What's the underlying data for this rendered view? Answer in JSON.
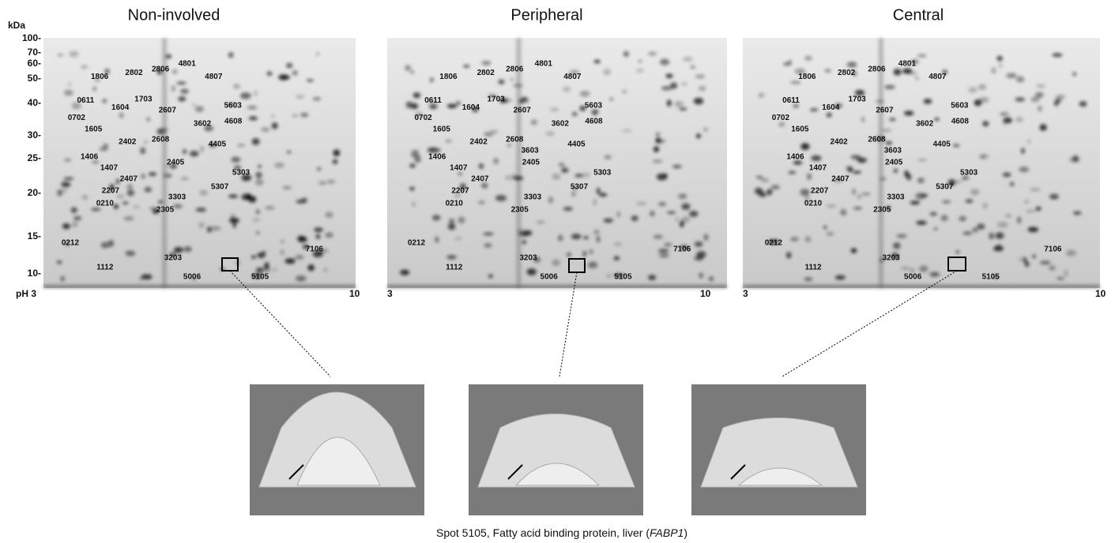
{
  "panels": [
    {
      "title": "Non-involved",
      "x_start": "pH 3",
      "x_end": "10",
      "spots": [
        "1806",
        "2802",
        "2806",
        "4801",
        "4807",
        "0611",
        "1703",
        "5603",
        "0702",
        "1604",
        "2607",
        "3602",
        "4608",
        "1605",
        "2402",
        "2608",
        "4405",
        "1406",
        "2405",
        "5303",
        "1407",
        "2407",
        "5307",
        "2207",
        "3303",
        "0210",
        "2305",
        "0212",
        "3203",
        "7106",
        "1112",
        "5006",
        "5105"
      ]
    },
    {
      "title": "Peripheral",
      "x_start": "3",
      "x_end": "10",
      "spots": [
        "1806",
        "2802",
        "2806",
        "4801",
        "4807",
        "0611",
        "1703",
        "5603",
        "0702",
        "1604",
        "2607",
        "3602",
        "4608",
        "1605",
        "2402",
        "2608",
        "4405",
        "1406",
        "2405",
        "5303",
        "1407",
        "2407",
        "5307",
        "2207",
        "3303",
        "0210",
        "2305",
        "0212",
        "3203",
        "7106",
        "1112",
        "5006",
        "5105",
        "3603"
      ]
    },
    {
      "title": "Central",
      "x_start": "3",
      "x_end": "10",
      "spots": [
        "1806",
        "2802",
        "2806",
        "4801",
        "4807",
        "0611",
        "1703",
        "5603",
        "0702",
        "1604",
        "2607",
        "3602",
        "4608",
        "1605",
        "2402",
        "2608",
        "4405",
        "1406",
        "2405",
        "5303",
        "1407",
        "2407",
        "5307",
        "2207",
        "3303",
        "0210",
        "2305",
        "0212",
        "3203",
        "7106",
        "1112",
        "5006",
        "5105",
        "3603"
      ]
    }
  ],
  "y_axis": {
    "unit": "kDa",
    "ticks": [
      "100-",
      "70-",
      "60-",
      "50-",
      "40-",
      "30-",
      "25-",
      "20-",
      "15-",
      "10-"
    ]
  },
  "caption": {
    "before": "Spot 5105, Fatty acid binding protein, liver (",
    "gene": "FABP1",
    "after": ")"
  }
}
